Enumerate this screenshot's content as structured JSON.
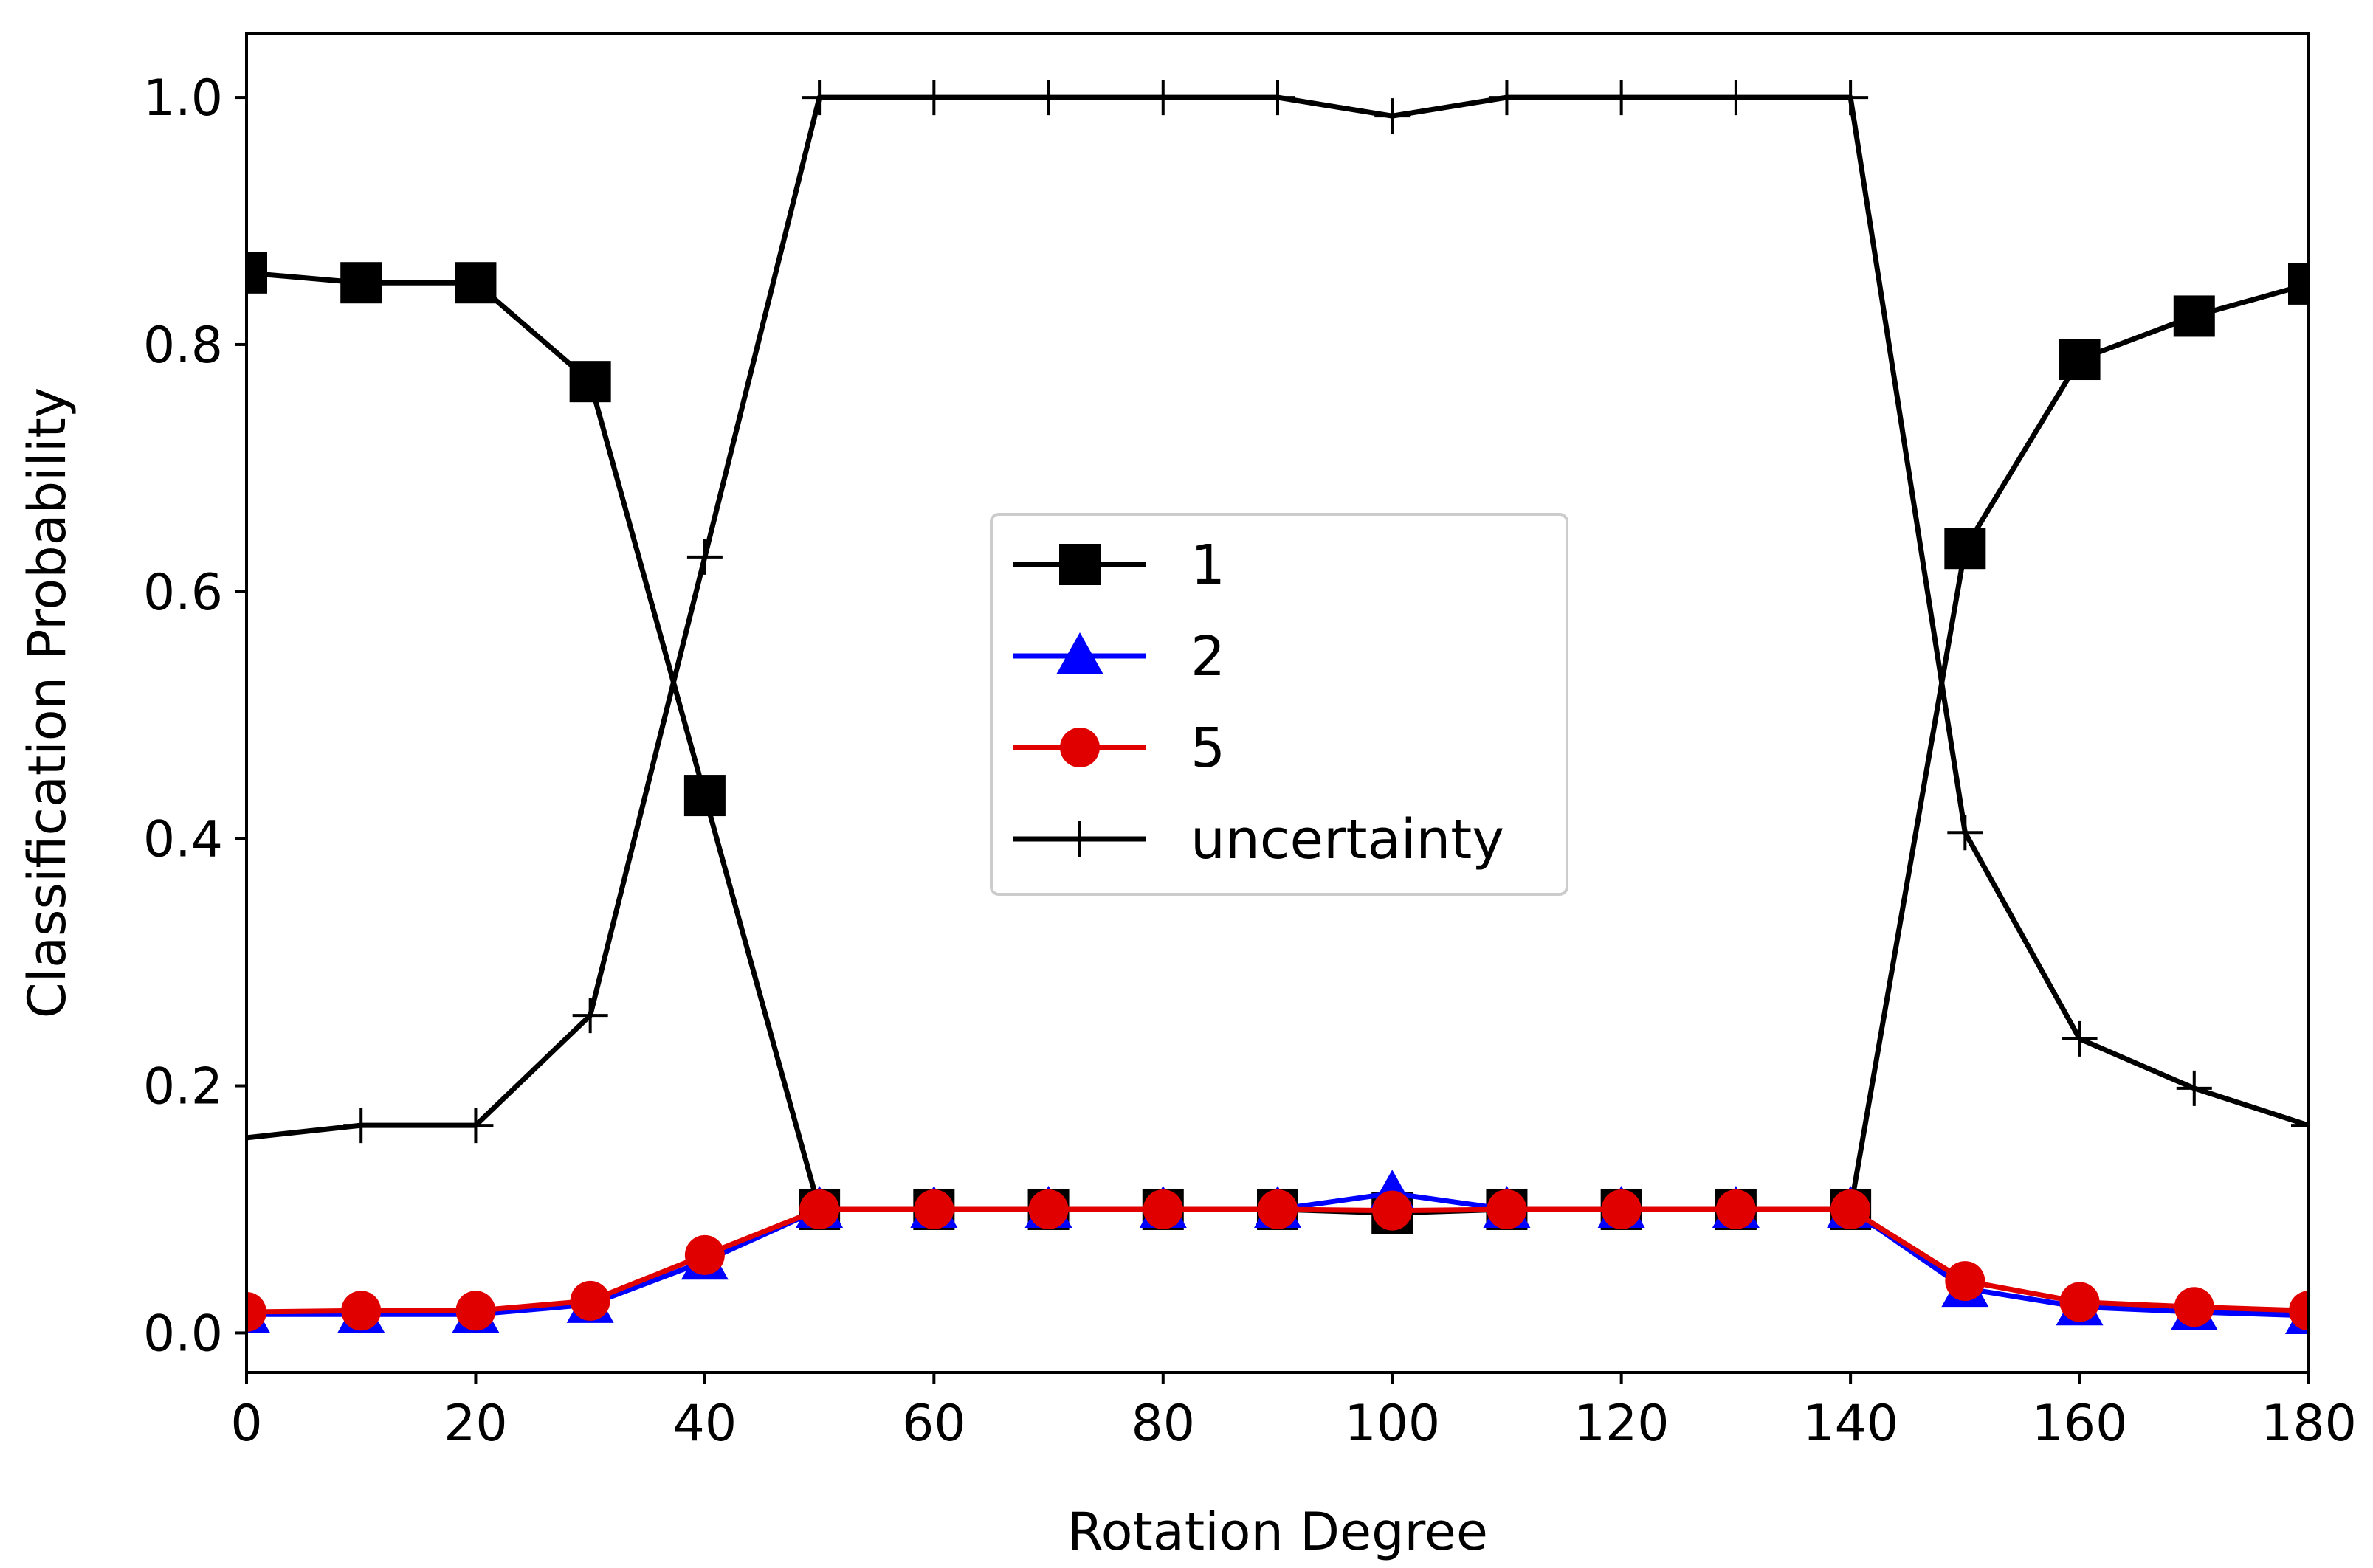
{
  "chart_data": {
    "type": "line",
    "xlabel": "Rotation Degree",
    "ylabel": "Classification Probability",
    "xlim": [
      0,
      180
    ],
    "ylim": [
      -0.032,
      1.052
    ],
    "xticks": [
      "0",
      "20",
      "40",
      "60",
      "80",
      "100",
      "120",
      "140",
      "160",
      "180"
    ],
    "yticks": [
      "0.0",
      "0.2",
      "0.4",
      "0.6",
      "0.8",
      "1.0"
    ],
    "grid": false,
    "legend_position": "center",
    "x": [
      0,
      10,
      20,
      30,
      40,
      50,
      60,
      70,
      80,
      90,
      100,
      110,
      120,
      130,
      140,
      150,
      160,
      170,
      180
    ],
    "series": [
      {
        "name": "1",
        "color": "#000000",
        "marker": "square",
        "values": [
          0.858,
          0.85,
          0.85,
          0.77,
          0.435,
          0.1,
          0.1,
          0.1,
          0.1,
          0.1,
          0.097,
          0.1,
          0.1,
          0.1,
          0.1,
          0.635,
          0.788,
          0.823,
          0.849
        ]
      },
      {
        "name": "2",
        "color": "#0000ff",
        "marker": "triangle",
        "values": [
          0.015,
          0.015,
          0.015,
          0.023,
          0.058,
          0.1,
          0.1,
          0.1,
          0.1,
          0.1,
          0.113,
          0.1,
          0.1,
          0.1,
          0.1,
          0.036,
          0.021,
          0.017,
          0.014
        ]
      },
      {
        "name": "5",
        "color": "#e00000",
        "marker": "circle",
        "values": [
          0.017,
          0.018,
          0.018,
          0.026,
          0.063,
          0.1,
          0.1,
          0.1,
          0.1,
          0.1,
          0.099,
          0.1,
          0.1,
          0.1,
          0.1,
          0.042,
          0.025,
          0.021,
          0.018
        ]
      },
      {
        "name": "uncertainty",
        "color": "#000000",
        "marker": "plus",
        "values": [
          0.158,
          0.168,
          0.168,
          0.257,
          0.628,
          1.0,
          1.0,
          1.0,
          1.0,
          1.0,
          0.985,
          1.0,
          1.0,
          1.0,
          1.0,
          0.405,
          0.238,
          0.198,
          0.168
        ]
      }
    ]
  }
}
